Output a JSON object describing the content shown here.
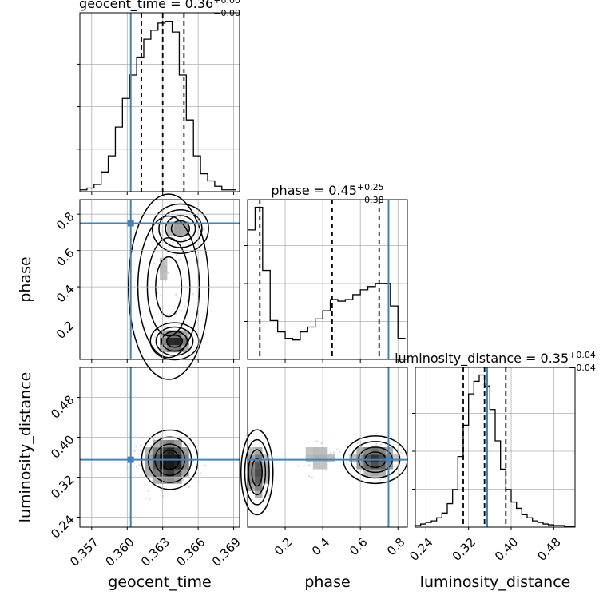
{
  "chart_data": [
    {
      "type": "histogram",
      "panel": "geocent_time-marginal",
      "title": {
        "main": "geocent_time = 0.36",
        "sup": "+0.00",
        "sub": "−0.00"
      },
      "bin_edges": [
        0.356,
        0.3566,
        0.3572,
        0.3578,
        0.3584,
        0.359,
        0.3596,
        0.3602,
        0.3608,
        0.3614,
        0.362,
        0.3626,
        0.3632,
        0.3638,
        0.3644,
        0.365,
        0.3656,
        0.3662,
        0.3668,
        0.3674,
        0.368,
        0.3686,
        0.3692
      ],
      "heights": [
        0.01,
        0.02,
        0.04,
        0.11,
        0.2,
        0.36,
        0.52,
        0.65,
        0.75,
        0.85,
        0.9,
        0.94,
        0.95,
        0.89,
        0.65,
        0.4,
        0.2,
        0.1,
        0.06,
        0.03,
        0.01,
        0.01
      ],
      "xlim": [
        0.356,
        0.3695
      ],
      "quantiles": [
        0.3612,
        0.363,
        0.3648
      ],
      "truth": 0.3603
    },
    {
      "type": "histogram",
      "panel": "phase-marginal",
      "title": {
        "main": "phase = 0.45",
        "sup": "+0.25",
        "sub": "−0.38"
      },
      "bin_edges": [
        0.0,
        0.04,
        0.08,
        0.12,
        0.16,
        0.2,
        0.24,
        0.28,
        0.32,
        0.36,
        0.4,
        0.44,
        0.48,
        0.52,
        0.56,
        0.6,
        0.64,
        0.68,
        0.72,
        0.76,
        0.8,
        0.84
      ],
      "heights": [
        0.8,
        0.94,
        0.55,
        0.24,
        0.17,
        0.13,
        0.12,
        0.17,
        0.2,
        0.25,
        0.3,
        0.37,
        0.36,
        0.37,
        0.4,
        0.43,
        0.45,
        0.47,
        0.47,
        0.33,
        0.13
      ],
      "xlim": [
        0.0,
        0.85
      ],
      "quantiles": [
        0.065,
        0.45,
        0.7
      ],
      "truth": 0.75
    },
    {
      "type": "histogram",
      "panel": "luminosity_distance-marginal",
      "title": {
        "main": "luminosity_distance = 0.35",
        "sup": "+0.04",
        "sub": "−0.04"
      },
      "bin_edges": [
        0.22,
        0.23,
        0.24,
        0.25,
        0.26,
        0.27,
        0.28,
        0.29,
        0.3,
        0.31,
        0.32,
        0.33,
        0.34,
        0.35,
        0.36,
        0.37,
        0.38,
        0.39,
        0.4,
        0.41,
        0.42,
        0.43,
        0.44,
        0.45,
        0.46,
        0.47,
        0.48,
        0.49,
        0.5,
        0.51,
        0.52
      ],
      "heights": [
        0.01,
        0.02,
        0.03,
        0.04,
        0.06,
        0.09,
        0.15,
        0.24,
        0.45,
        0.65,
        0.85,
        0.93,
        0.97,
        0.9,
        0.75,
        0.55,
        0.37,
        0.24,
        0.16,
        0.12,
        0.08,
        0.06,
        0.04,
        0.03,
        0.02,
        0.015,
        0.01,
        0.01,
        0.005,
        0.005
      ],
      "xlim": [
        0.22,
        0.52
      ],
      "quantiles": [
        0.31,
        0.35,
        0.39
      ],
      "truth": 0.355
    },
    {
      "type": "heatmap",
      "panel": "phase-vs-geocent_time",
      "x": "geocent_time",
      "y": "phase",
      "xlim": [
        0.356,
        0.3695
      ],
      "ylim": [
        0.0,
        0.88
      ],
      "truth": [
        0.3603,
        0.75
      ],
      "xticks": [
        "0.357",
        "0.360",
        "0.363",
        "0.366",
        "0.369"
      ],
      "xtick_values": [
        0.357,
        0.36,
        0.363,
        0.366,
        0.369
      ],
      "yticks": [
        "0.2",
        "0.4",
        "0.6",
        "0.8"
      ],
      "ytick_values": [
        0.2,
        0.4,
        0.6,
        0.8
      ],
      "ylabel": "phase"
    },
    {
      "type": "heatmap",
      "panel": "luminosity_distance-vs-geocent_time",
      "x": "geocent_time",
      "y": "luminosity_distance",
      "xlim": [
        0.356,
        0.3695
      ],
      "ylim": [
        0.22,
        0.54
      ],
      "truth": [
        0.3603,
        0.355
      ],
      "xticks": [
        "0.357",
        "0.360",
        "0.363",
        "0.366",
        "0.369"
      ],
      "xtick_values": [
        0.357,
        0.36,
        0.363,
        0.366,
        0.369
      ],
      "yticks": [
        "0.24",
        "0.32",
        "0.40",
        "0.48"
      ],
      "ytick_values": [
        0.24,
        0.32,
        0.4,
        0.48
      ],
      "xlabel": "geocent_time",
      "ylabel": "luminosity_distance"
    },
    {
      "type": "heatmap",
      "panel": "luminosity_distance-vs-phase",
      "x": "phase",
      "y": "luminosity_distance",
      "xlim": [
        0.0,
        0.85
      ],
      "ylim": [
        0.22,
        0.54
      ],
      "truth": [
        0.75,
        0.355
      ],
      "xticks": [
        "0.2",
        "0.4",
        "0.6",
        "0.8"
      ],
      "xtick_values": [
        0.2,
        0.4,
        0.6,
        0.8
      ],
      "xlabel": "phase"
    }
  ],
  "colors": {
    "truth": "#4682b4",
    "hist": "#000000",
    "contour": "#000000",
    "grid": "#b0b0b0"
  }
}
